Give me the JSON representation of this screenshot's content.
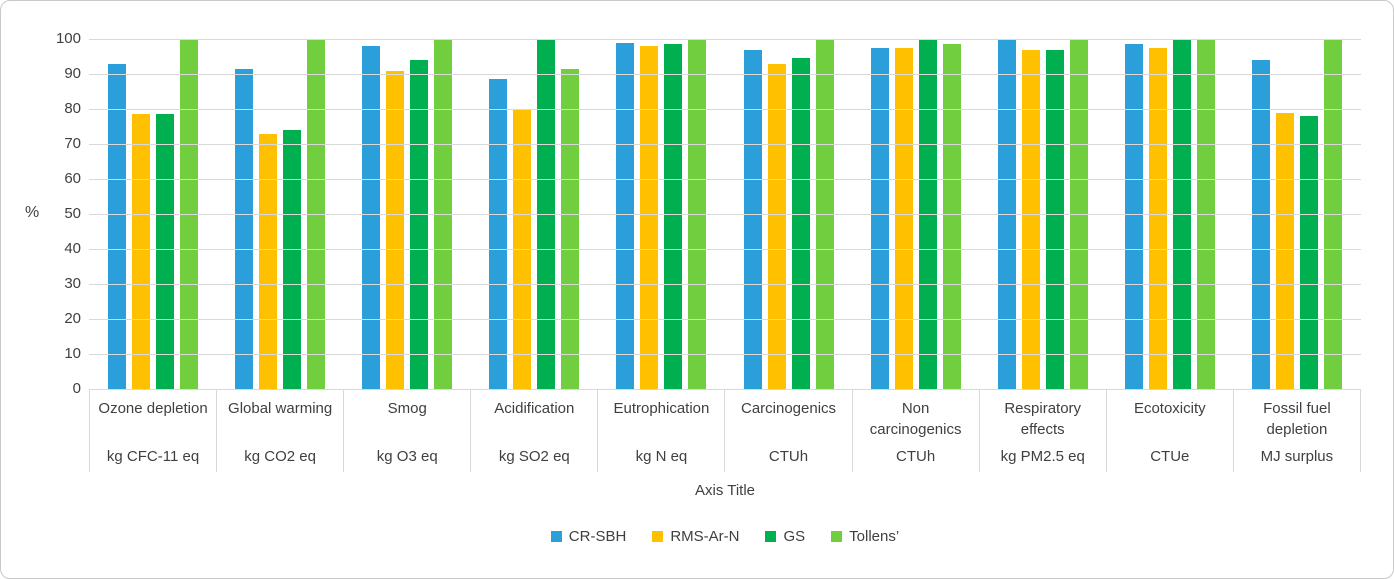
{
  "chart_data": {
    "type": "bar",
    "title": "",
    "xlabel": "Axis Title",
    "ylabel": "%",
    "ylim": [
      0,
      100
    ],
    "ytick_interval": 10,
    "grid": true,
    "legend_position": "bottom",
    "categories": [
      {
        "name": "Ozone depletion",
        "unit": "kg CFC-11 eq"
      },
      {
        "name": "Global warming",
        "unit": "kg CO2 eq"
      },
      {
        "name": "Smog",
        "unit": "kg O3 eq"
      },
      {
        "name": "Acidification",
        "unit": "kg SO2 eq"
      },
      {
        "name": "Eutrophication",
        "unit": "kg N eq"
      },
      {
        "name": "Carcinogenics",
        "unit": "CTUh"
      },
      {
        "name": "Non carcinogenics",
        "unit": "CTUh"
      },
      {
        "name": "Respiratory effects",
        "unit": "kg PM2.5 eq"
      },
      {
        "name": "Ecotoxicity",
        "unit": "CTUe"
      },
      {
        "name": "Fossil fuel depletion",
        "unit": "MJ surplus"
      }
    ],
    "series": [
      {
        "name": "CR-SBH",
        "color": "#2b9fd9",
        "values": [
          93,
          91.5,
          98,
          88.5,
          99,
          97,
          97.5,
          100,
          98.5,
          94
        ]
      },
      {
        "name": "RMS-Ar-N",
        "color": "#ffc000",
        "values": [
          78.5,
          73,
          91,
          80,
          98,
          93,
          97.5,
          97,
          97.5,
          79
        ]
      },
      {
        "name": "GS",
        "color": "#00b050",
        "values": [
          78.5,
          74,
          94,
          100,
          98.5,
          94.5,
          100,
          97,
          100,
          78
        ]
      },
      {
        "name": "Tollens’",
        "color": "#70ce3f",
        "values": [
          100,
          100,
          100,
          91.5,
          100,
          100,
          98.5,
          100,
          100,
          100
        ]
      }
    ],
    "colors": {
      "text": "#404040",
      "gridline": "#d9d9d9",
      "frame_border": "#c9c9c9"
    }
  }
}
